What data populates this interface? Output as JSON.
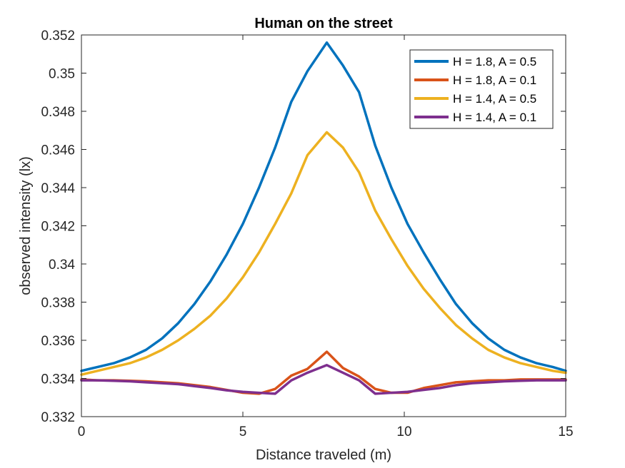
{
  "chart_data": {
    "type": "line",
    "title": "Human on the street",
    "xlabel": "Distance traveled (m)",
    "ylabel": "observed intensity (lx)",
    "xlim": [
      0,
      15
    ],
    "ylim": [
      0.332,
      0.352
    ],
    "xticks": [
      0,
      5,
      10,
      15
    ],
    "xtick_labels": [
      "0",
      "5",
      "10",
      "15"
    ],
    "yticks": [
      0.332,
      0.334,
      0.336,
      0.338,
      0.34,
      0.342,
      0.344,
      0.346,
      0.348,
      0.35,
      0.352
    ],
    "ytick_labels": [
      "0.332",
      "0.334",
      "0.336",
      "0.338",
      "0.34",
      "0.342",
      "0.344",
      "0.346",
      "0.348",
      "0.35",
      "0.352"
    ],
    "grid": false,
    "legend_position": "top-right",
    "x": [
      0,
      0.5,
      1,
      1.5,
      2,
      2.5,
      3,
      3.5,
      4,
      4.5,
      5,
      5.5,
      6,
      6.5,
      7,
      7.6,
      8.1,
      8.6,
      9.1,
      9.6,
      10.1,
      10.6,
      11.1,
      11.6,
      12.1,
      12.6,
      13.1,
      13.6,
      14.1,
      14.6,
      15
    ],
    "series": [
      {
        "name": "H = 1.8, A = 0.5",
        "color": "#0072BD",
        "values": [
          0.3344,
          0.3346,
          0.3348,
          0.3351,
          0.3355,
          0.3361,
          0.3369,
          0.3379,
          0.3391,
          0.3405,
          0.3421,
          0.344,
          0.3461,
          0.3485,
          0.3501,
          0.3516,
          0.3504,
          0.349,
          0.3462,
          0.344,
          0.3421,
          0.3406,
          0.3392,
          0.3379,
          0.3369,
          0.3361,
          0.3355,
          0.3351,
          0.3348,
          0.3346,
          0.3344
        ]
      },
      {
        "name": "H = 1.8, A = 0.1",
        "color": "#D95319",
        "values": [
          0.33395,
          0.3339,
          0.3339,
          0.33388,
          0.33385,
          0.3338,
          0.33375,
          0.33365,
          0.33355,
          0.3334,
          0.33325,
          0.3332,
          0.33345,
          0.33415,
          0.3345,
          0.3354,
          0.33455,
          0.3341,
          0.33345,
          0.33325,
          0.33325,
          0.3335,
          0.33365,
          0.3338,
          0.33385,
          0.3339,
          0.3339,
          0.33395,
          0.33395,
          0.33395,
          0.33395
        ]
      },
      {
        "name": "H = 1.4, A = 0.5",
        "color": "#EDB120",
        "values": [
          0.3342,
          0.3344,
          0.3346,
          0.3348,
          0.3351,
          0.3355,
          0.336,
          0.3366,
          0.3373,
          0.3382,
          0.3393,
          0.3406,
          0.3421,
          0.3437,
          0.3457,
          0.3469,
          0.3461,
          0.3448,
          0.3428,
          0.3413,
          0.3399,
          0.3387,
          0.3377,
          0.3368,
          0.3361,
          0.3355,
          0.3351,
          0.3348,
          0.3346,
          0.3344,
          0.3343
        ]
      },
      {
        "name": "H = 1.4, A = 0.1",
        "color": "#7E2F8E",
        "values": [
          0.3339,
          0.3339,
          0.33388,
          0.33385,
          0.3338,
          0.33375,
          0.3337,
          0.3336,
          0.3335,
          0.33338,
          0.3333,
          0.33325,
          0.3332,
          0.3339,
          0.3343,
          0.3347,
          0.3343,
          0.3339,
          0.3332,
          0.33325,
          0.3333,
          0.3334,
          0.3335,
          0.33365,
          0.33375,
          0.3338,
          0.33385,
          0.33388,
          0.3339,
          0.3339,
          0.3339
        ]
      }
    ]
  }
}
